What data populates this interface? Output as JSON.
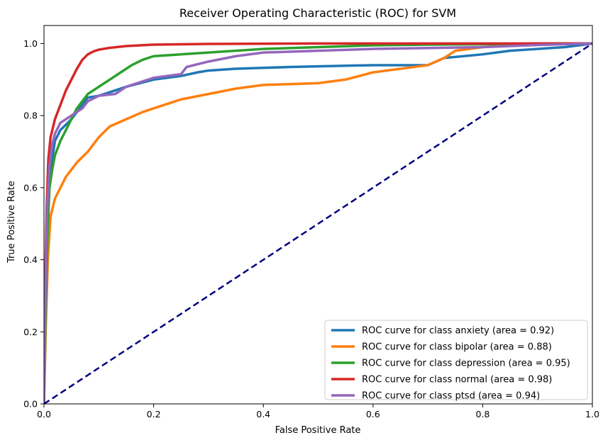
{
  "chart_data": {
    "type": "line",
    "title": "Receiver Operating Characteristic (ROC) for SVM",
    "xlabel": "False Positive Rate",
    "ylabel": "True Positive Rate",
    "xlim": [
      0.0,
      1.0
    ],
    "ylim": [
      0.0,
      1.05
    ],
    "xticks": [
      0.0,
      0.2,
      0.4,
      0.6,
      0.8,
      1.0
    ],
    "yticks": [
      0.0,
      0.2,
      0.4,
      0.6,
      0.8,
      1.0
    ],
    "xtick_labels": [
      "0.0",
      "0.2",
      "0.4",
      "0.6",
      "0.8",
      "1.0"
    ],
    "ytick_labels": [
      "0.0",
      "0.2",
      "0.4",
      "0.6",
      "0.8",
      "1.0"
    ],
    "grid": false,
    "legend_position": "lower-right",
    "series": [
      {
        "name": "ROC curve for class anxiety (area = 0.92)",
        "color": "#1f77b4",
        "x": [
          0.0,
          0.003,
          0.006,
          0.01,
          0.015,
          0.02,
          0.03,
          0.05,
          0.07,
          0.08,
          0.1,
          0.13,
          0.15,
          0.2,
          0.25,
          0.28,
          0.3,
          0.35,
          0.45,
          0.6,
          0.7,
          0.73,
          0.8,
          0.85,
          0.9,
          0.95,
          1.0
        ],
        "y": [
          0.0,
          0.3,
          0.5,
          0.62,
          0.68,
          0.73,
          0.76,
          0.79,
          0.83,
          0.85,
          0.855,
          0.87,
          0.88,
          0.9,
          0.91,
          0.92,
          0.925,
          0.93,
          0.935,
          0.94,
          0.94,
          0.96,
          0.97,
          0.98,
          0.985,
          0.99,
          1.0
        ]
      },
      {
        "name": "ROC curve for class bipolar (area = 0.88)",
        "color": "#ff7f0e",
        "x": [
          0.0,
          0.003,
          0.007,
          0.012,
          0.02,
          0.03,
          0.04,
          0.06,
          0.08,
          0.1,
          0.12,
          0.15,
          0.18,
          0.2,
          0.23,
          0.25,
          0.3,
          0.35,
          0.4,
          0.5,
          0.55,
          0.6,
          0.7,
          0.73,
          0.75,
          0.8,
          0.85,
          0.9,
          1.0
        ],
        "y": [
          0.0,
          0.2,
          0.4,
          0.52,
          0.57,
          0.6,
          0.63,
          0.67,
          0.7,
          0.74,
          0.77,
          0.79,
          0.81,
          0.82,
          0.835,
          0.845,
          0.86,
          0.875,
          0.885,
          0.89,
          0.9,
          0.92,
          0.94,
          0.96,
          0.98,
          0.99,
          0.995,
          1.0,
          1.0
        ]
      },
      {
        "name": "ROC curve for class depression (area = 0.95)",
        "color": "#2ca02c",
        "x": [
          0.0,
          0.003,
          0.006,
          0.01,
          0.015,
          0.02,
          0.03,
          0.04,
          0.05,
          0.06,
          0.08,
          0.1,
          0.12,
          0.14,
          0.16,
          0.18,
          0.2,
          0.3,
          0.4,
          0.5,
          0.6,
          0.7,
          0.8,
          0.9,
          1.0
        ],
        "y": [
          0.0,
          0.25,
          0.45,
          0.6,
          0.65,
          0.69,
          0.73,
          0.76,
          0.79,
          0.82,
          0.86,
          0.88,
          0.9,
          0.92,
          0.94,
          0.955,
          0.965,
          0.975,
          0.985,
          0.99,
          0.995,
          0.997,
          0.998,
          1.0,
          1.0
        ]
      },
      {
        "name": "ROC curve for class normal (area = 0.98)",
        "color": "#d62728",
        "x": [
          0.0,
          0.002,
          0.005,
          0.008,
          0.012,
          0.02,
          0.03,
          0.04,
          0.05,
          0.06,
          0.07,
          0.08,
          0.09,
          0.1,
          0.12,
          0.15,
          0.2,
          0.3,
          0.5,
          0.7,
          1.0
        ],
        "y": [
          0.0,
          0.3,
          0.55,
          0.68,
          0.74,
          0.79,
          0.83,
          0.87,
          0.9,
          0.93,
          0.955,
          0.97,
          0.978,
          0.983,
          0.988,
          0.993,
          0.997,
          0.999,
          1.0,
          1.0,
          1.0
        ]
      },
      {
        "name": "ROC curve for class ptsd (area = 0.94)",
        "color": "#9467bd",
        "x": [
          0.0,
          0.003,
          0.006,
          0.01,
          0.015,
          0.02,
          0.03,
          0.05,
          0.07,
          0.08,
          0.1,
          0.13,
          0.15,
          0.2,
          0.25,
          0.26,
          0.3,
          0.35,
          0.4,
          0.5,
          0.6,
          0.8,
          0.85,
          0.9,
          1.0
        ],
        "y": [
          0.0,
          0.35,
          0.55,
          0.66,
          0.72,
          0.75,
          0.78,
          0.8,
          0.82,
          0.84,
          0.855,
          0.86,
          0.88,
          0.905,
          0.915,
          0.935,
          0.95,
          0.965,
          0.975,
          0.98,
          0.985,
          0.99,
          0.993,
          0.996,
          1.0
        ]
      }
    ],
    "reference_line": {
      "x": [
        0.0,
        1.0
      ],
      "y": [
        0.0,
        1.0
      ],
      "color": "#000080",
      "style": "dashed"
    }
  }
}
